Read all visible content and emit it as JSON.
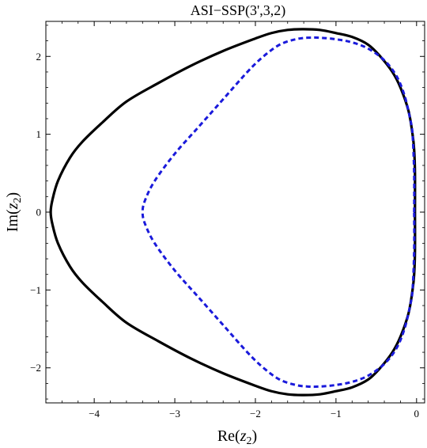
{
  "chart_data": {
    "type": "line",
    "title": "ASI−SSP(3',3,2)",
    "xlabel": {
      "prefix": "Re(",
      "var": "z",
      "sub": "2",
      "suffix": ")"
    },
    "ylabel": {
      "prefix": "Im(",
      "var": "z",
      "sub": "2",
      "suffix": ")"
    },
    "xlim": [
      -4.6,
      0.1
    ],
    "ylim": [
      -2.45,
      2.45
    ],
    "xticks": [
      {
        "value": -4,
        "label": "−4"
      },
      {
        "value": -3,
        "label": "−3"
      },
      {
        "value": -2,
        "label": "−2"
      },
      {
        "value": -1,
        "label": "−1"
      },
      {
        "value": 0,
        "label": "0"
      }
    ],
    "yticks": [
      {
        "value": -2,
        "label": "−2"
      },
      {
        "value": -1,
        "label": "−1"
      },
      {
        "value": 0,
        "label": "0"
      },
      {
        "value": 1,
        "label": "1"
      },
      {
        "value": 2,
        "label": "2"
      }
    ],
    "grid": false,
    "series": [
      {
        "style": "solid",
        "color": "#000000",
        "points": [
          [
            -0.02,
            0.0
          ],
          [
            -0.02,
            0.5
          ],
          [
            -0.03,
            0.8
          ],
          [
            -0.05,
            1.0
          ],
          [
            -0.1,
            1.3
          ],
          [
            -0.2,
            1.6
          ],
          [
            -0.3,
            1.8
          ],
          [
            -0.45,
            2.0
          ],
          [
            -0.6,
            2.15
          ],
          [
            -0.8,
            2.25
          ],
          [
            -1.0,
            2.3
          ],
          [
            -1.2,
            2.34
          ],
          [
            -1.4,
            2.35
          ],
          [
            -1.6,
            2.34
          ],
          [
            -1.8,
            2.3
          ],
          [
            -2.0,
            2.23
          ],
          [
            -2.4,
            2.07
          ],
          [
            -2.8,
            1.88
          ],
          [
            -3.2,
            1.66
          ],
          [
            -3.6,
            1.42
          ],
          [
            -3.9,
            1.15
          ],
          [
            -4.15,
            0.9
          ],
          [
            -4.3,
            0.7
          ],
          [
            -4.45,
            0.4
          ],
          [
            -4.52,
            0.15
          ],
          [
            -4.54,
            0.0
          ],
          [
            -4.52,
            -0.15
          ],
          [
            -4.45,
            -0.4
          ],
          [
            -4.3,
            -0.7
          ],
          [
            -4.15,
            -0.9
          ],
          [
            -3.9,
            -1.15
          ],
          [
            -3.6,
            -1.42
          ],
          [
            -3.2,
            -1.66
          ],
          [
            -2.8,
            -1.88
          ],
          [
            -2.4,
            -2.07
          ],
          [
            -2.0,
            -2.23
          ],
          [
            -1.8,
            -2.3
          ],
          [
            -1.6,
            -2.34
          ],
          [
            -1.4,
            -2.35
          ],
          [
            -1.2,
            -2.34
          ],
          [
            -1.0,
            -2.3
          ],
          [
            -0.8,
            -2.25
          ],
          [
            -0.6,
            -2.15
          ],
          [
            -0.45,
            -2.0
          ],
          [
            -0.3,
            -1.8
          ],
          [
            -0.2,
            -1.6
          ],
          [
            -0.1,
            -1.3
          ],
          [
            -0.05,
            -1.0
          ],
          [
            -0.03,
            -0.8
          ],
          [
            -0.02,
            -0.5
          ],
          [
            -0.02,
            0.0
          ]
        ]
      },
      {
        "style": "dashed",
        "color": "#1a1adb",
        "points": [
          [
            -0.03,
            0.0
          ],
          [
            -0.03,
            0.5
          ],
          [
            -0.05,
            1.0
          ],
          [
            -0.08,
            1.2
          ],
          [
            -0.15,
            1.5
          ],
          [
            -0.25,
            1.75
          ],
          [
            -0.4,
            1.95
          ],
          [
            -0.6,
            2.1
          ],
          [
            -0.8,
            2.18
          ],
          [
            -1.0,
            2.22
          ],
          [
            -1.2,
            2.24
          ],
          [
            -1.35,
            2.24
          ],
          [
            -1.5,
            2.22
          ],
          [
            -1.7,
            2.15
          ],
          [
            -1.9,
            2.0
          ],
          [
            -2.1,
            1.8
          ],
          [
            -2.4,
            1.45
          ],
          [
            -2.7,
            1.1
          ],
          [
            -3.0,
            0.75
          ],
          [
            -3.25,
            0.4
          ],
          [
            -3.37,
            0.15
          ],
          [
            -3.4,
            0.0
          ],
          [
            -3.37,
            -0.15
          ],
          [
            -3.25,
            -0.4
          ],
          [
            -3.0,
            -0.75
          ],
          [
            -2.7,
            -1.1
          ],
          [
            -2.4,
            -1.45
          ],
          [
            -2.1,
            -1.8
          ],
          [
            -1.9,
            -2.0
          ],
          [
            -1.7,
            -2.15
          ],
          [
            -1.5,
            -2.22
          ],
          [
            -1.35,
            -2.24
          ],
          [
            -1.2,
            -2.24
          ],
          [
            -1.0,
            -2.22
          ],
          [
            -0.8,
            -2.18
          ],
          [
            -0.6,
            -2.1
          ],
          [
            -0.4,
            -1.95
          ],
          [
            -0.25,
            -1.75
          ],
          [
            -0.15,
            -1.5
          ],
          [
            -0.08,
            -1.2
          ],
          [
            -0.05,
            -1.0
          ],
          [
            -0.03,
            -0.5
          ],
          [
            -0.03,
            0.0
          ]
        ]
      }
    ]
  }
}
